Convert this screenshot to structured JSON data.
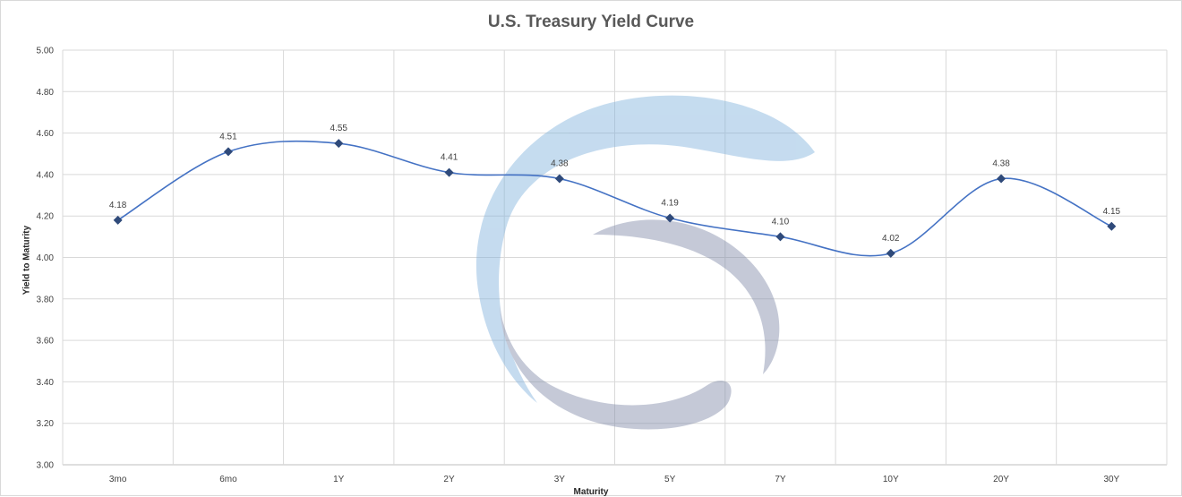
{
  "chart_data": {
    "type": "line",
    "title": "U.S. Treasury Yield Curve",
    "xlabel": "Maturity",
    "ylabel": "Yield to Maturity",
    "categories": [
      "3mo",
      "6mo",
      "1Y",
      "2Y",
      "3Y",
      "5Y",
      "7Y",
      "10Y",
      "20Y",
      "30Y"
    ],
    "values": [
      4.18,
      4.51,
      4.55,
      4.41,
      4.38,
      4.19,
      4.1,
      4.02,
      4.38,
      4.15
    ],
    "value_labels": [
      "4.18",
      "4.51",
      "4.55",
      "4.41",
      "4.38",
      "4.19",
      "4.10",
      "4.02",
      "4.38",
      "4.15"
    ],
    "ylim": [
      3.0,
      5.0
    ],
    "yticks": [
      "3.00",
      "3.20",
      "3.40",
      "3.60",
      "3.80",
      "4.00",
      "4.20",
      "4.40",
      "4.60",
      "4.80",
      "5.00"
    ],
    "grid": true,
    "smooth": true,
    "legend": "none",
    "line_color": "#4472c4",
    "marker_color": "#2f4a7a",
    "marker": "diamond"
  }
}
